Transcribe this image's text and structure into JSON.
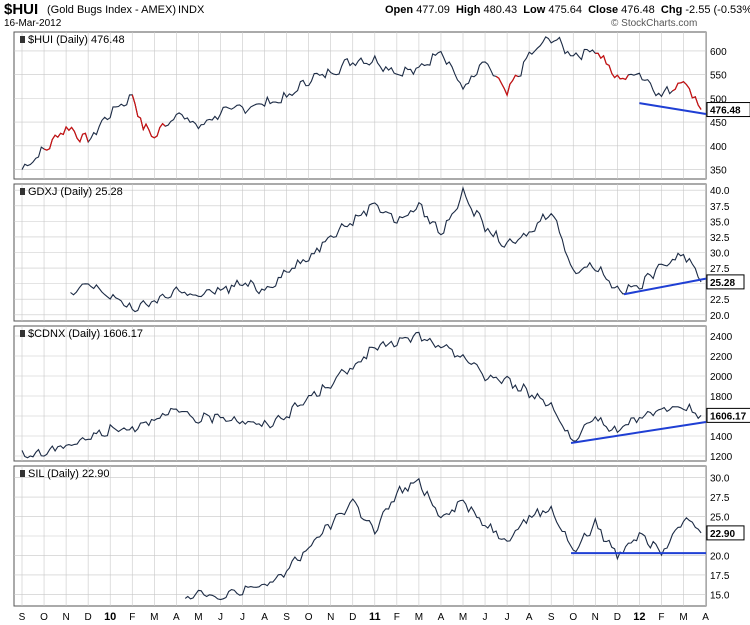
{
  "header": {
    "symbol": "$HUI",
    "name": "(Gold Bugs Index - AMEX)",
    "exchange": "INDX",
    "date": "16-Mar-2012",
    "open_label": "Open",
    "open": "477.09",
    "high_label": "High",
    "high": "480.43",
    "low_label": "Low",
    "low": "475.64",
    "close_label": "Close",
    "close": "476.48",
    "chg_label": "Chg",
    "chg": "-2.55 (-0.53%)",
    "brand": "© StockCharts.com"
  },
  "colors": {
    "price_line": "#1c2b45",
    "down_segment": "#cc1111",
    "trend_line": "#1f3fd4",
    "grid": "#c8c8c8",
    "panel_border": "#555555"
  },
  "x_axis": {
    "labels": [
      "S",
      "O",
      "N",
      "D",
      "10",
      "F",
      "M",
      "A",
      "M",
      "J",
      "J",
      "A",
      "S",
      "O",
      "N",
      "D",
      "11",
      "F",
      "M",
      "A",
      "M",
      "J",
      "J",
      "A",
      "S",
      "O",
      "N",
      "D",
      "12",
      "F",
      "M",
      "A"
    ],
    "year_labels": [
      "10",
      "11",
      "12"
    ]
  },
  "chart_data": [
    {
      "type": "line",
      "title": "$HUI (Daily) 476.48",
      "series": [
        {
          "name": "$HUI",
          "last": 476.48
        }
      ],
      "last_label": "476.48",
      "yticks": [
        350,
        400,
        450,
        500,
        550,
        600
      ],
      "ylim": [
        330,
        640
      ],
      "anchors": [
        [
          0,
          350
        ],
        [
          0.5,
          372
        ],
        [
          1,
          390
        ],
        [
          2,
          440
        ],
        [
          3,
          410
        ],
        [
          4,
          470
        ],
        [
          5,
          505
        ],
        [
          5.5,
          440
        ],
        [
          6,
          420
        ],
        [
          7,
          470
        ],
        [
          8,
          440
        ],
        [
          9,
          470
        ],
        [
          10,
          480
        ],
        [
          11,
          490
        ],
        [
          12,
          500
        ],
        [
          13,
          540
        ],
        [
          14,
          555
        ],
        [
          15,
          580
        ],
        [
          16,
          580
        ],
        [
          17,
          555
        ],
        [
          18,
          560
        ],
        [
          19,
          605
        ],
        [
          20,
          520
        ],
        [
          21,
          575
        ],
        [
          22,
          510
        ],
        [
          23,
          590
        ],
        [
          24,
          630
        ],
        [
          25,
          590
        ],
        [
          26,
          605
        ],
        [
          27,
          540
        ],
        [
          28,
          555
        ],
        [
          29,
          505
        ],
        [
          30,
          540
        ],
        [
          30.8,
          476.48
        ]
      ],
      "red_segments": [
        [
          1,
          3
        ],
        [
          5,
          6.5
        ],
        [
          21.5,
          22.5
        ],
        [
          26,
          27.5
        ],
        [
          29.5,
          30.8
        ]
      ],
      "trendlines": [
        {
          "points": [
            [
              28,
              490
            ],
            [
              31.8,
              467
            ]
          ]
        }
      ]
    },
    {
      "type": "line",
      "title": "GDXJ (Daily) 25.28",
      "series": [
        {
          "name": "GDXJ",
          "last": 25.28
        }
      ],
      "last_label": "25.28",
      "yticks": [
        20.0,
        22.5,
        25.0,
        27.5,
        30.0,
        32.5,
        35.0,
        37.5,
        40.0
      ],
      "ylim": [
        19.0,
        41.0
      ],
      "anchors": [
        [
          2.2,
          23
        ],
        [
          3,
          25
        ],
        [
          4,
          23
        ],
        [
          5,
          21
        ],
        [
          6,
          22
        ],
        [
          7,
          24
        ],
        [
          8,
          23
        ],
        [
          9,
          24
        ],
        [
          10,
          25
        ],
        [
          11,
          24
        ],
        [
          12,
          27
        ],
        [
          13,
          29
        ],
        [
          14,
          33
        ],
        [
          15,
          35
        ],
        [
          16,
          38
        ],
        [
          17,
          35
        ],
        [
          18,
          37.5
        ],
        [
          19,
          33
        ],
        [
          20,
          39.5
        ],
        [
          21,
          34
        ],
        [
          22,
          31
        ],
        [
          23,
          33
        ],
        [
          24,
          37
        ],
        [
          25,
          27
        ],
        [
          26,
          28
        ],
        [
          27,
          24
        ],
        [
          28,
          24.5
        ],
        [
          29,
          28
        ],
        [
          30,
          30
        ],
        [
          30.8,
          25.28
        ]
      ],
      "trendlines": [
        {
          "points": [
            [
              27.3,
              23.3
            ],
            [
              31.8,
              25.8
            ]
          ]
        }
      ]
    },
    {
      "type": "line",
      "title": "$CDNX (Daily) 1606.17",
      "series": [
        {
          "name": "$CDNX",
          "last": 1606.17
        }
      ],
      "last_label": "1606.17",
      "yticks": [
        1200,
        1400,
        1600,
        1800,
        2000,
        2200,
        2400
      ],
      "ylim": [
        1150,
        2500
      ],
      "anchors": [
        [
          0,
          1200
        ],
        [
          1,
          1230
        ],
        [
          2,
          1310
        ],
        [
          3,
          1380
        ],
        [
          4,
          1460
        ],
        [
          5,
          1480
        ],
        [
          6,
          1580
        ],
        [
          7,
          1650
        ],
        [
          8,
          1560
        ],
        [
          9,
          1600
        ],
        [
          10,
          1550
        ],
        [
          11,
          1500
        ],
        [
          12,
          1610
        ],
        [
          13,
          1780
        ],
        [
          14,
          1920
        ],
        [
          15,
          2100
        ],
        [
          16,
          2280
        ],
        [
          17,
          2340
        ],
        [
          18,
          2400
        ],
        [
          19,
          2280
        ],
        [
          20,
          2200
        ],
        [
          21,
          2000
        ],
        [
          22,
          1950
        ],
        [
          23,
          1830
        ],
        [
          24,
          1720
        ],
        [
          25,
          1320
        ],
        [
          26,
          1580
        ],
        [
          27,
          1450
        ],
        [
          28,
          1600
        ],
        [
          29,
          1650
        ],
        [
          30,
          1690
        ],
        [
          30.8,
          1606.17
        ]
      ],
      "trendlines": [
        {
          "points": [
            [
              24.9,
              1330
            ],
            [
              31.8,
              1540
            ]
          ]
        }
      ]
    },
    {
      "type": "line",
      "title": "SIL (Daily) 22.90",
      "series": [
        {
          "name": "SIL",
          "last": 22.9
        }
      ],
      "last_label": "22.90",
      "yticks": [
        15.0,
        17.5,
        20.0,
        22.5,
        25.0,
        27.5,
        30.0
      ],
      "ylim": [
        13.5,
        31.5
      ],
      "anchors": [
        [
          7.4,
          14.5
        ],
        [
          8,
          15.5
        ],
        [
          9,
          14.5
        ],
        [
          10,
          15.5
        ],
        [
          11,
          16
        ],
        [
          12,
          18
        ],
        [
          13,
          21
        ],
        [
          14,
          24
        ],
        [
          15,
          27
        ],
        [
          16,
          23
        ],
        [
          17,
          28
        ],
        [
          18,
          29.5
        ],
        [
          19,
          25
        ],
        [
          20,
          27
        ],
        [
          21,
          24
        ],
        [
          22,
          22
        ],
        [
          23,
          25
        ],
        [
          24,
          26
        ],
        [
          25,
          20.5
        ],
        [
          26,
          24
        ],
        [
          27,
          20
        ],
        [
          28,
          23
        ],
        [
          29,
          20.5
        ],
        [
          30,
          25
        ],
        [
          30.8,
          22.9
        ]
      ],
      "trendlines": [
        {
          "points": [
            [
              24.9,
              20.3
            ],
            [
              33,
              20.3
            ]
          ]
        }
      ]
    }
  ]
}
